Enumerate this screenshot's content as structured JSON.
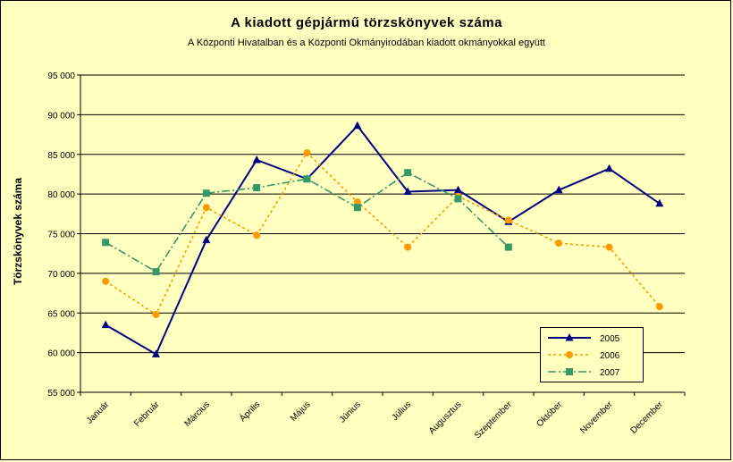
{
  "chart_data": {
    "type": "line",
    "title": "A  kiadott gépjármű  törzskönyvek száma",
    "subtitle": "A Központi Hivatalban és a Központi Okmányirodában kiadott okmányokkal együtt",
    "xlabel": "",
    "ylabel": "Törzskönyvek száma",
    "ylim": [
      55000,
      95000
    ],
    "yticks": [
      "55 000",
      "60 000",
      "65 000",
      "70 000",
      "75 000",
      "80 000",
      "85 000",
      "90 000",
      "95 000"
    ],
    "grid": true,
    "legend_position": "bottom-right",
    "categories": [
      "Január",
      "Február",
      "Március",
      "Április",
      "Május",
      "Június",
      "Július",
      "Augusztus",
      "Szeptember",
      "Október",
      "November",
      "December"
    ],
    "series": [
      {
        "name": "2005",
        "color": "#000080",
        "marker": "triangle",
        "dash": "solid",
        "values": [
          63500,
          59800,
          74200,
          84300,
          81900,
          88600,
          80300,
          80500,
          76500,
          80500,
          83200,
          78800
        ]
      },
      {
        "name": "2006",
        "color": "#ff9900",
        "marker": "circle",
        "dash": "dotted",
        "values": [
          69000,
          64800,
          78300,
          74800,
          85200,
          79000,
          73300,
          79700,
          76700,
          73800,
          73300,
          65800
        ]
      },
      {
        "name": "2007",
        "color": "#339966",
        "marker": "square",
        "dash": "dashdot",
        "values": [
          73900,
          70200,
          80100,
          80800,
          81900,
          78300,
          82700,
          79400,
          73300,
          null,
          null,
          null
        ]
      }
    ]
  },
  "colors": {
    "background": "#ffffc0",
    "gridline": "#000000"
  }
}
